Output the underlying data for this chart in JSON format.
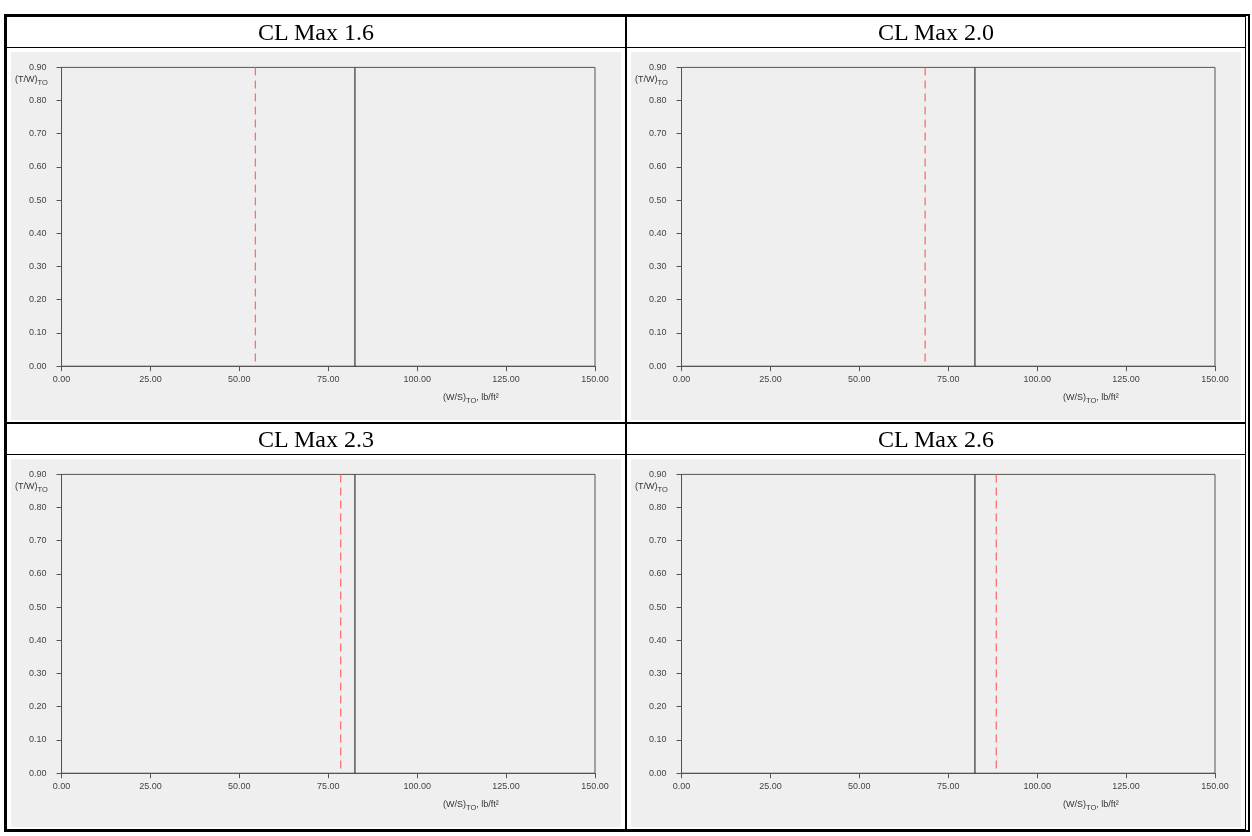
{
  "chart_data": [
    {
      "type": "line",
      "title": "CL Max 1.6",
      "xlabel": "(W/S)$_{TO}$, lb/ft²",
      "ylabel": "(T/W)$_{TO}$",
      "grid": false,
      "xlim": [
        0,
        150
      ],
      "xticks": [
        {
          "value": 0,
          "label": "0.00"
        },
        {
          "value": 25,
          "label": "25.00"
        },
        {
          "value": 50,
          "label": "50.00"
        },
        {
          "value": 75,
          "label": "75.00"
        },
        {
          "value": 100,
          "label": "100.00"
        },
        {
          "value": 125,
          "label": "125.00"
        },
        {
          "value": 150,
          "label": "150.00"
        }
      ],
      "ylim": [
        0,
        0.9
      ],
      "yticks": [
        {
          "value": 0,
          "label": "0.00"
        },
        {
          "value": 0.1,
          "label": "0.10"
        },
        {
          "value": 0.2,
          "label": "0.20"
        },
        {
          "value": 0.3,
          "label": "0.30"
        },
        {
          "value": 0.4,
          "label": "0.40"
        },
        {
          "value": 0.5,
          "label": "0.50"
        },
        {
          "value": 0.6,
          "label": "0.60"
        },
        {
          "value": 0.7,
          "label": "0.70"
        },
        {
          "value": 0.8,
          "label": "0.80"
        },
        {
          "value": 0.9,
          "label": "0.90"
        }
      ],
      "ref_lines": [
        {
          "axis": "x",
          "value": 54.5,
          "color": "#ff6666",
          "line_style": "dashed"
        },
        {
          "axis": "x",
          "value": 82.5,
          "color": "#333333",
          "line_style": "solid"
        }
      ]
    },
    {
      "type": "line",
      "title": "CL Max 2.0",
      "xlabel": "(W/S)$_{TO}$, lb/ft²",
      "ylabel": "(T/W)$_{TO}$",
      "grid": false,
      "xlim": [
        0,
        150
      ],
      "xticks": [
        {
          "value": 0,
          "label": "0.00"
        },
        {
          "value": 25,
          "label": "25.00"
        },
        {
          "value": 50,
          "label": "50.00"
        },
        {
          "value": 75,
          "label": "75.00"
        },
        {
          "value": 100,
          "label": "100.00"
        },
        {
          "value": 125,
          "label": "125.00"
        },
        {
          "value": 150,
          "label": "150.00"
        }
      ],
      "ylim": [
        0,
        0.9
      ],
      "yticks": [
        {
          "value": 0,
          "label": "0.00"
        },
        {
          "value": 0.1,
          "label": "0.10"
        },
        {
          "value": 0.2,
          "label": "0.20"
        },
        {
          "value": 0.3,
          "label": "0.30"
        },
        {
          "value": 0.4,
          "label": "0.40"
        },
        {
          "value": 0.5,
          "label": "0.50"
        },
        {
          "value": 0.6,
          "label": "0.60"
        },
        {
          "value": 0.7,
          "label": "0.70"
        },
        {
          "value": 0.8,
          "label": "0.80"
        },
        {
          "value": 0.9,
          "label": "0.90"
        }
      ],
      "ref_lines": [
        {
          "axis": "x",
          "value": 68.5,
          "color": "#ff6666",
          "line_style": "dashed"
        },
        {
          "axis": "x",
          "value": 82.5,
          "color": "#333333",
          "line_style": "solid"
        }
      ]
    },
    {
      "type": "line",
      "title": "CL Max 2.3",
      "xlabel": "(W/S)$_{TO}$, lb/ft²",
      "ylabel": "(T/W)$_{TO}$",
      "grid": false,
      "xlim": [
        0,
        150
      ],
      "xticks": [
        {
          "value": 0,
          "label": "0.00"
        },
        {
          "value": 25,
          "label": "25.00"
        },
        {
          "value": 50,
          "label": "50.00"
        },
        {
          "value": 75,
          "label": "75.00"
        },
        {
          "value": 100,
          "label": "100.00"
        },
        {
          "value": 125,
          "label": "125.00"
        },
        {
          "value": 150,
          "label": "150.00"
        }
      ],
      "ylim": [
        0,
        0.9
      ],
      "yticks": [
        {
          "value": 0,
          "label": "0.00"
        },
        {
          "value": 0.1,
          "label": "0.10"
        },
        {
          "value": 0.2,
          "label": "0.20"
        },
        {
          "value": 0.3,
          "label": "0.30"
        },
        {
          "value": 0.4,
          "label": "0.40"
        },
        {
          "value": 0.5,
          "label": "0.50"
        },
        {
          "value": 0.6,
          "label": "0.60"
        },
        {
          "value": 0.7,
          "label": "0.70"
        },
        {
          "value": 0.8,
          "label": "0.80"
        },
        {
          "value": 0.9,
          "label": "0.90"
        }
      ],
      "ref_lines": [
        {
          "axis": "x",
          "value": 78.5,
          "color": "#ff6666",
          "line_style": "dashed"
        },
        {
          "axis": "x",
          "value": 82.5,
          "color": "#333333",
          "line_style": "solid"
        }
      ]
    },
    {
      "type": "line",
      "title": "CL Max 2.6",
      "xlabel": "(W/S)$_{TO}$, lb/ft²",
      "ylabel": "(T/W)$_{TO}$",
      "grid": false,
      "xlim": [
        0,
        150
      ],
      "xticks": [
        {
          "value": 0,
          "label": "0.00"
        },
        {
          "value": 25,
          "label": "25.00"
        },
        {
          "value": 50,
          "label": "50.00"
        },
        {
          "value": 75,
          "label": "75.00"
        },
        {
          "value": 100,
          "label": "100.00"
        },
        {
          "value": 125,
          "label": "125.00"
        },
        {
          "value": 150,
          "label": "150.00"
        }
      ],
      "ylim": [
        0,
        0.9
      ],
      "yticks": [
        {
          "value": 0,
          "label": "0.00"
        },
        {
          "value": 0.1,
          "label": "0.10"
        },
        {
          "value": 0.2,
          "label": "0.20"
        },
        {
          "value": 0.3,
          "label": "0.30"
        },
        {
          "value": 0.4,
          "label": "0.40"
        },
        {
          "value": 0.5,
          "label": "0.50"
        },
        {
          "value": 0.6,
          "label": "0.60"
        },
        {
          "value": 0.7,
          "label": "0.70"
        },
        {
          "value": 0.8,
          "label": "0.80"
        },
        {
          "value": 0.9,
          "label": "0.90"
        }
      ],
      "ref_lines": [
        {
          "axis": "x",
          "value": 82.5,
          "color": "#333333",
          "line_style": "solid"
        },
        {
          "axis": "x",
          "value": 88.5,
          "color": "#ff6666",
          "line_style": "dashed"
        }
      ]
    }
  ]
}
